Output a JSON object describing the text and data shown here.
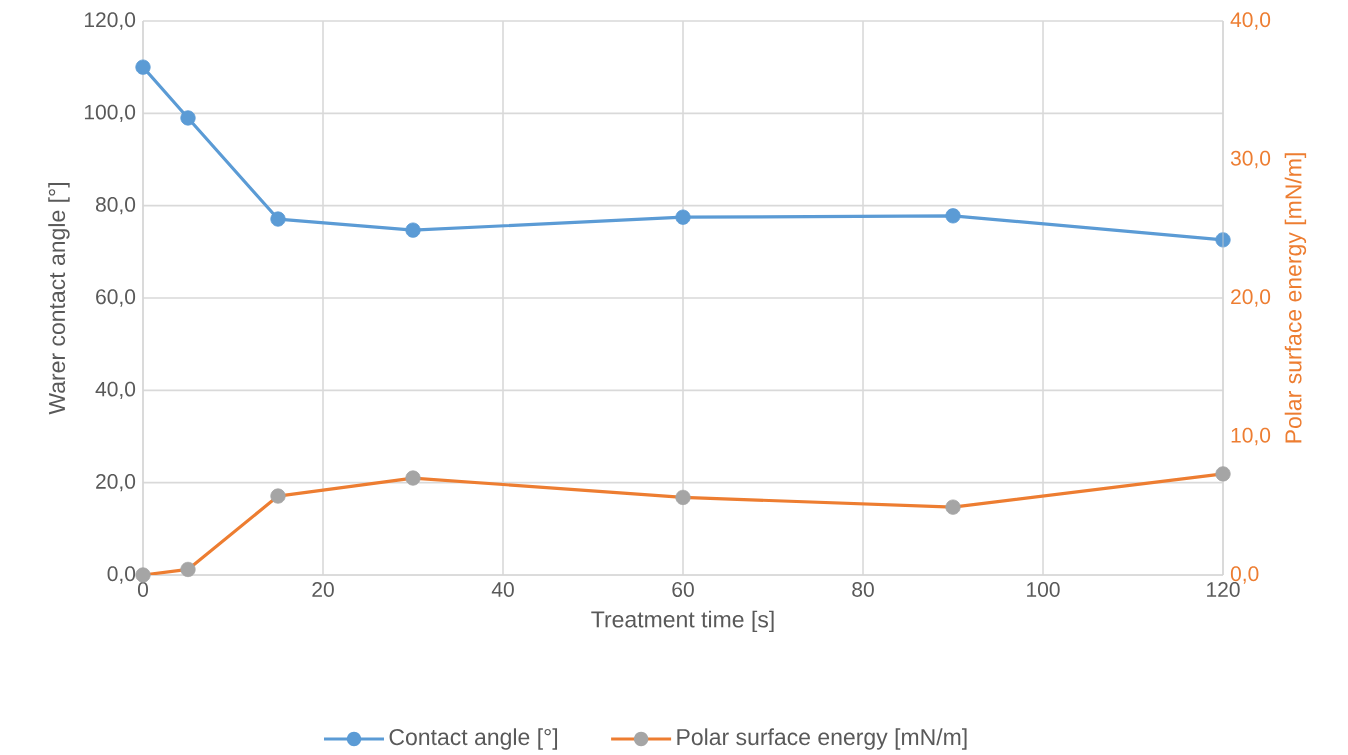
{
  "chart_data": {
    "type": "line",
    "xlabel": "Treatment time [s]",
    "ylabel": "Warer contact angle [°]",
    "y2label": "Polar surface energy [mN/m]",
    "xlim": [
      0,
      120
    ],
    "xticks": [
      0,
      20,
      40,
      60,
      80,
      100,
      120
    ],
    "ylim": [
      0,
      120
    ],
    "yticks": [
      {
        "value": 0,
        "label": "0,0"
      },
      {
        "value": 20,
        "label": "20,0"
      },
      {
        "value": 40,
        "label": "40,0"
      },
      {
        "value": 60,
        "label": "60,0"
      },
      {
        "value": 80,
        "label": "80,0"
      },
      {
        "value": 100,
        "label": "100,0"
      },
      {
        "value": 120,
        "label": "120,0"
      }
    ],
    "y2lim": [
      0,
      40
    ],
    "y2ticks": [
      {
        "value": 0,
        "label": "0,0"
      },
      {
        "value": 10,
        "label": "10,0"
      },
      {
        "value": 20,
        "label": "20,0"
      },
      {
        "value": 30,
        "label": "30,0"
      },
      {
        "value": 40,
        "label": "40,0"
      }
    ],
    "x": [
      0,
      5,
      15,
      30,
      60,
      90,
      120
    ],
    "series": [
      {
        "name": "Contact angle [°]",
        "color": "#5b9bd5",
        "values": [
          110.0,
          99.0,
          77.1,
          74.7,
          77.5,
          77.8,
          72.6
        ]
      },
      {
        "name": "Polar surface energy [mN/m]",
        "color": "#ed7d31",
        "axis": "y2",
        "colors": [
          "#a5a5a5",
          "#a5a5a5",
          "#a5a5a5",
          "#a5a5a5",
          "#a5a5a5",
          "#a5a5a5",
          "#a5a5a5"
        ],
        "values": [
          0.0,
          0.4,
          5.7,
          7.0,
          5.6,
          4.9,
          7.3
        ]
      }
    ],
    "grid": true,
    "legend": "bottom",
    "marker": "circle",
    "line_style": "solid"
  }
}
